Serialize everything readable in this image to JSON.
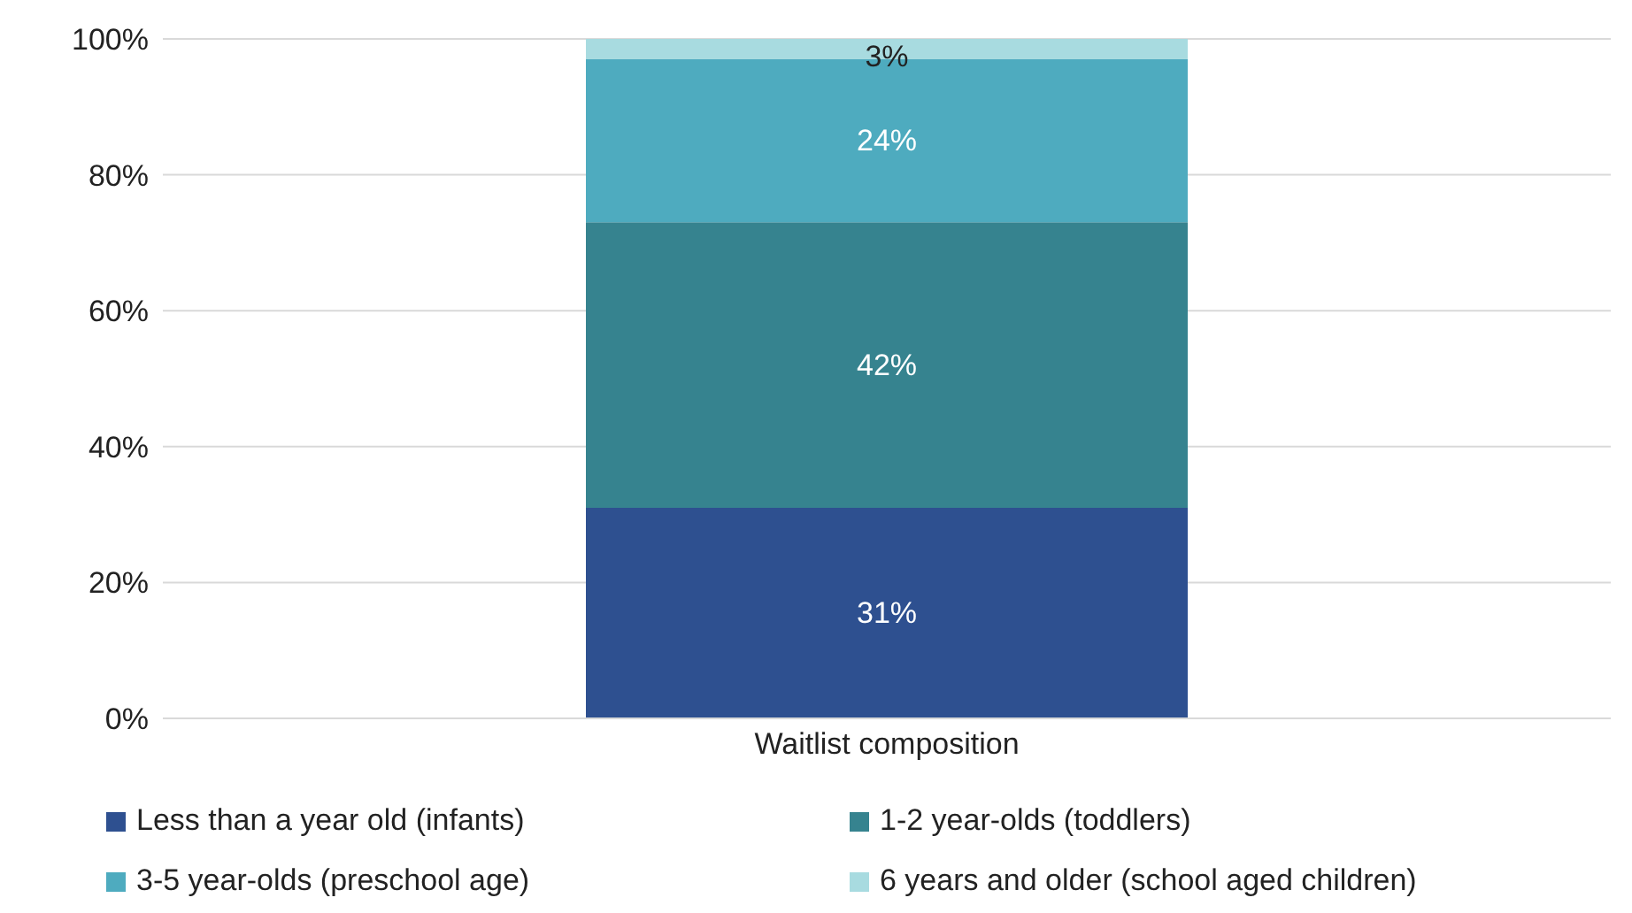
{
  "chart_data": {
    "type": "bar",
    "stacked": true,
    "categories": [
      "Waitlist composition"
    ],
    "series": [
      {
        "name": "Less than a year old (infants)",
        "color": "#2e5090",
        "values": [
          31
        ],
        "value_labels": [
          "31%"
        ]
      },
      {
        "name": "1-2 year-olds (toddlers)",
        "color": "#36838f",
        "values": [
          42
        ],
        "value_labels": [
          "42%"
        ]
      },
      {
        "name": "3-5 year-olds (preschool age)",
        "color": "#4eabbf",
        "values": [
          24
        ],
        "value_labels": [
          "24%"
        ]
      },
      {
        "name": "6 years and older (school aged children)",
        "color": "#a8dbe0",
        "values": [
          3
        ],
        "value_labels": [
          "3%"
        ]
      }
    ],
    "ylim": [
      0,
      100
    ],
    "yticks": [
      {
        "value": 0,
        "label": "0%"
      },
      {
        "value": 20,
        "label": "20%"
      },
      {
        "value": 40,
        "label": "40%"
      },
      {
        "value": 60,
        "label": "60%"
      },
      {
        "value": 80,
        "label": "80%"
      },
      {
        "value": 100,
        "label": "100%"
      }
    ],
    "grid": "y",
    "legend": "bottom"
  }
}
